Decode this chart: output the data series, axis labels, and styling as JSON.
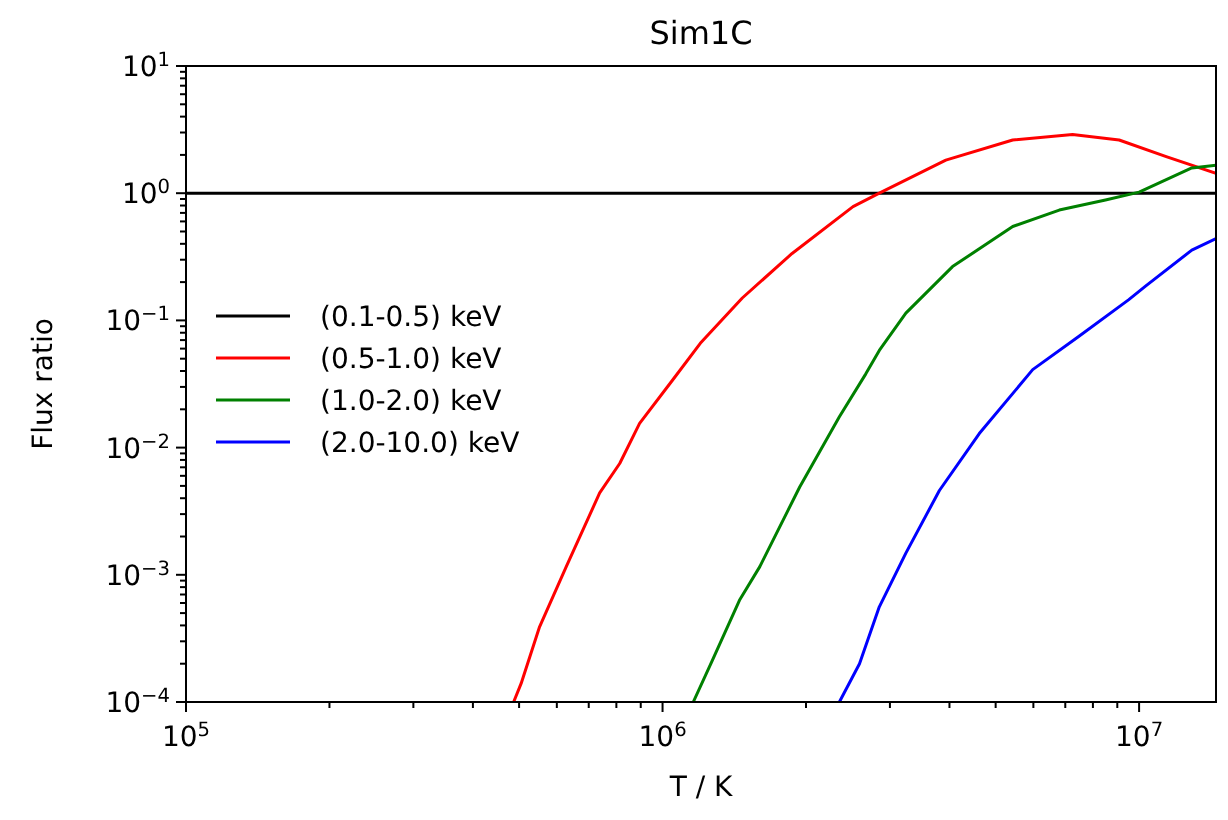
{
  "chart_data": {
    "type": "line",
    "title": "Sim1C",
    "xlabel": "T / K",
    "ylabel": "Flux ratio",
    "log": "xy",
    "legend": "center left",
    "grid": false,
    "marker": "none",
    "line_style": "solid",
    "xlim": [
      100000,
      14500000
    ],
    "ylim": [
      0.0001,
      10
    ],
    "xticks": [
      {
        "value": 100000,
        "label": "10$^{5}$"
      },
      {
        "value": 200000,
        "label": null
      },
      {
        "value": 300000,
        "label": null
      },
      {
        "value": 400000,
        "label": null
      },
      {
        "value": 500000,
        "label": null
      },
      {
        "value": 600000,
        "label": null
      },
      {
        "value": 700000,
        "label": null
      },
      {
        "value": 800000,
        "label": null
      },
      {
        "value": 900000,
        "label": null
      },
      {
        "value": 1000000,
        "label": "10$^{6}$"
      },
      {
        "value": 2000000,
        "label": null
      },
      {
        "value": 3000000,
        "label": null
      },
      {
        "value": 4000000,
        "label": null
      },
      {
        "value": 5000000,
        "label": null
      },
      {
        "value": 6000000,
        "label": null
      },
      {
        "value": 7000000,
        "label": null
      },
      {
        "value": 8000000,
        "label": null
      },
      {
        "value": 9000000,
        "label": null
      },
      {
        "value": 10000000,
        "label": "10$^{7}$"
      }
    ],
    "yticks": [
      {
        "value": 0.0001,
        "label": "10$^{−4}$"
      },
      {
        "value": 0.0002,
        "label": null
      },
      {
        "value": 0.0003,
        "label": null
      },
      {
        "value": 0.0004,
        "label": null
      },
      {
        "value": 0.0005,
        "label": null
      },
      {
        "value": 0.0006,
        "label": null
      },
      {
        "value": 0.0007,
        "label": null
      },
      {
        "value": 0.0008,
        "label": null
      },
      {
        "value": 0.0009,
        "label": null
      },
      {
        "value": 0.001,
        "label": "10$^{−3}$"
      },
      {
        "value": 0.002,
        "label": null
      },
      {
        "value": 0.003,
        "label": null
      },
      {
        "value": 0.004,
        "label": null
      },
      {
        "value": 0.005,
        "label": null
      },
      {
        "value": 0.006,
        "label": null
      },
      {
        "value": 0.007,
        "label": null
      },
      {
        "value": 0.008,
        "label": null
      },
      {
        "value": 0.009,
        "label": null
      },
      {
        "value": 0.01,
        "label": "10$^{−2}$"
      },
      {
        "value": 0.02,
        "label": null
      },
      {
        "value": 0.03,
        "label": null
      },
      {
        "value": 0.04,
        "label": null
      },
      {
        "value": 0.05,
        "label": null
      },
      {
        "value": 0.06,
        "label": null
      },
      {
        "value": 0.07,
        "label": null
      },
      {
        "value": 0.08,
        "label": null
      },
      {
        "value": 0.09,
        "label": null
      },
      {
        "value": 0.1,
        "label": "10$^{−1}$"
      },
      {
        "value": 0.2,
        "label": null
      },
      {
        "value": 0.3,
        "label": null
      },
      {
        "value": 0.4,
        "label": null
      },
      {
        "value": 0.5,
        "label": null
      },
      {
        "value": 0.6,
        "label": null
      },
      {
        "value": 0.7,
        "label": null
      },
      {
        "value": 0.8,
        "label": null
      },
      {
        "value": 0.9,
        "label": null
      },
      {
        "value": 1,
        "label": "10$^{0}$"
      },
      {
        "value": 2,
        "label": null
      },
      {
        "value": 3,
        "label": null
      },
      {
        "value": 4,
        "label": null
      },
      {
        "value": 5,
        "label": null
      },
      {
        "value": 6,
        "label": null
      },
      {
        "value": 7,
        "label": null
      },
      {
        "value": 8,
        "label": null
      },
      {
        "value": 9,
        "label": null
      },
      {
        "value": 10,
        "label": "10$^{1}$"
      }
    ],
    "series": [
      {
        "name": "(0.1-0.5) keV",
        "color": "#000000",
        "x": [
          100000,
          14500000
        ],
        "values": [
          1,
          1
        ]
      },
      {
        "name": "(0.5-1.0) keV",
        "color": "#ff0000",
        "x": [
          487000,
          505000,
          552000,
          628000,
          738000,
          813000,
          895000,
          1050000,
          1200000,
          1470000,
          1870000,
          2510000,
          2850000,
          3930000,
          5430000,
          7250000,
          9080000,
          11400000,
          14500000
        ],
        "values": [
          0.0001,
          0.00014,
          0.00039,
          0.00116,
          0.0044,
          0.0075,
          0.0155,
          0.034,
          0.066,
          0.15,
          0.336,
          0.785,
          1.0,
          1.82,
          2.62,
          2.89,
          2.62,
          1.94,
          1.43
        ]
      },
      {
        "name": "(1.0-2.0) keV",
        "color": "#008000",
        "x": [
          1160000,
          1270000,
          1450000,
          1600000,
          1940000,
          2350000,
          2670000,
          2850000,
          3240000,
          4060000,
          5430000,
          6800000,
          8500000,
          10000000,
          12900000,
          14500000
        ],
        "values": [
          0.0001,
          0.00021,
          0.00063,
          0.00116,
          0.0049,
          0.0175,
          0.038,
          0.058,
          0.114,
          0.265,
          0.547,
          0.737,
          0.885,
          1.02,
          1.58,
          1.66
        ]
      },
      {
        "name": "(2.0-10.0) keV",
        "color": "#0000ff",
        "x": [
          2350000,
          2590000,
          2850000,
          3240000,
          3810000,
          4620000,
          5980000,
          7480000,
          9500000,
          10300000,
          12900000,
          14500000
        ],
        "values": [
          0.0001,
          0.0002,
          0.00056,
          0.00148,
          0.0046,
          0.0129,
          0.041,
          0.075,
          0.145,
          0.185,
          0.357,
          0.44
        ]
      }
    ]
  }
}
